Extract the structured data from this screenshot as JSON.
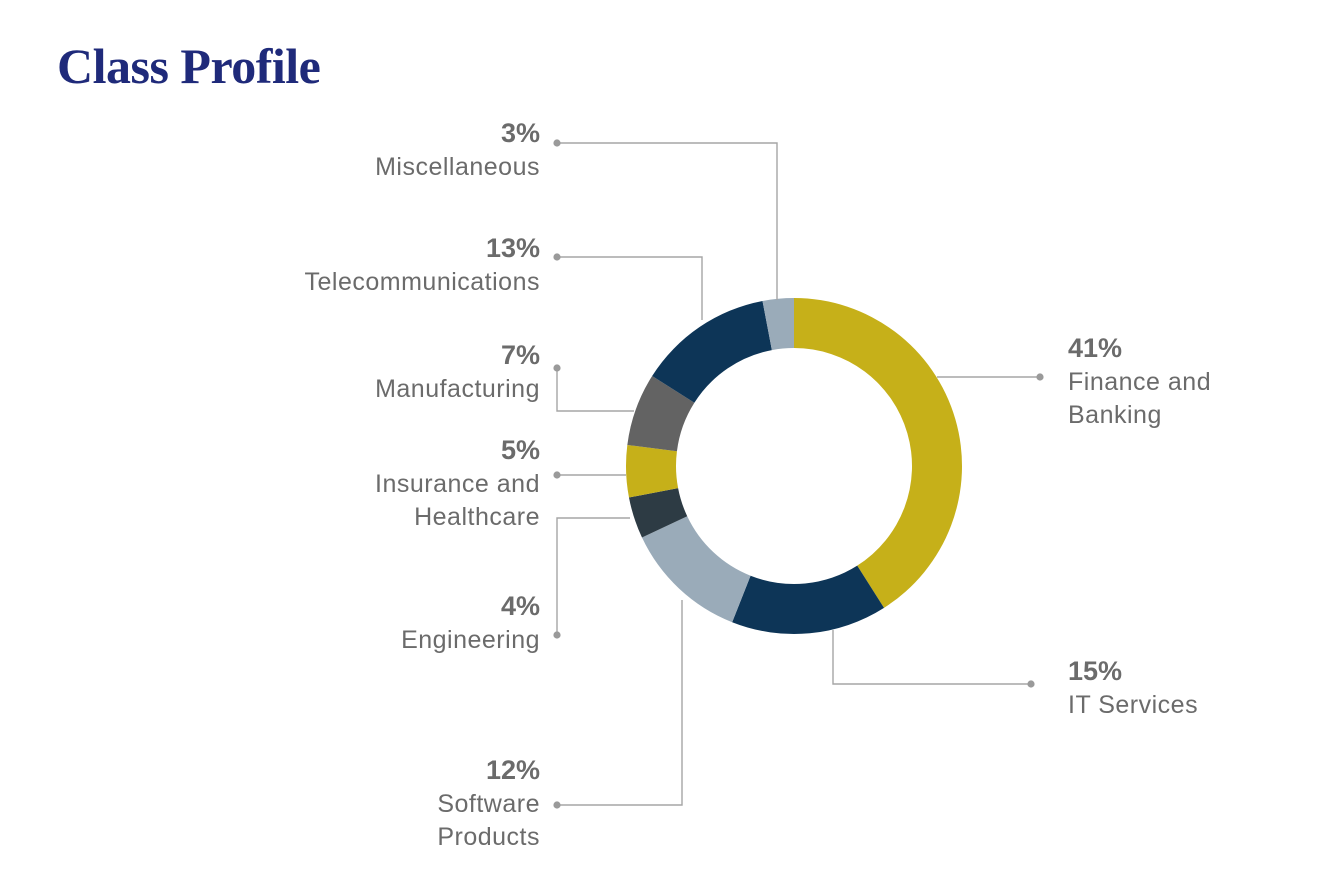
{
  "title": "Class Profile",
  "chart_data": {
    "type": "pie",
    "subtype": "donut",
    "title": "Class Profile",
    "labels_shown_as": "percent",
    "slices": [
      {
        "label": "Finance and Banking",
        "lines": [
          "Finance and",
          "Banking"
        ],
        "value": 41,
        "value_label": "41%",
        "color": "#c6b019"
      },
      {
        "label": "IT Services",
        "lines": [
          "IT Services"
        ],
        "value": 15,
        "value_label": "15%",
        "color": "#0d3557"
      },
      {
        "label": "Software Products",
        "lines": [
          "Software",
          "Products"
        ],
        "value": 12,
        "value_label": "12%",
        "color": "#9aabb9"
      },
      {
        "label": "Engineering",
        "lines": [
          "Engineering"
        ],
        "value": 4,
        "value_label": "4%",
        "color": "#2d3b44"
      },
      {
        "label": "Insurance and Healthcare",
        "lines": [
          "Insurance and",
          "Healthcare"
        ],
        "value": 5,
        "value_label": "5%",
        "color": "#c6b019"
      },
      {
        "label": "Manufacturing",
        "lines": [
          "Manufacturing"
        ],
        "value": 7,
        "value_label": "7%",
        "color": "#636363"
      },
      {
        "label": "Telecommunications",
        "lines": [
          "Telecommunications"
        ],
        "value": 13,
        "value_label": "13%",
        "color": "#0d3557"
      },
      {
        "label": "Miscellaneous",
        "lines": [
          "Miscellaneous"
        ],
        "value": 3,
        "value_label": "3%",
        "color": "#9aabb9"
      }
    ]
  }
}
